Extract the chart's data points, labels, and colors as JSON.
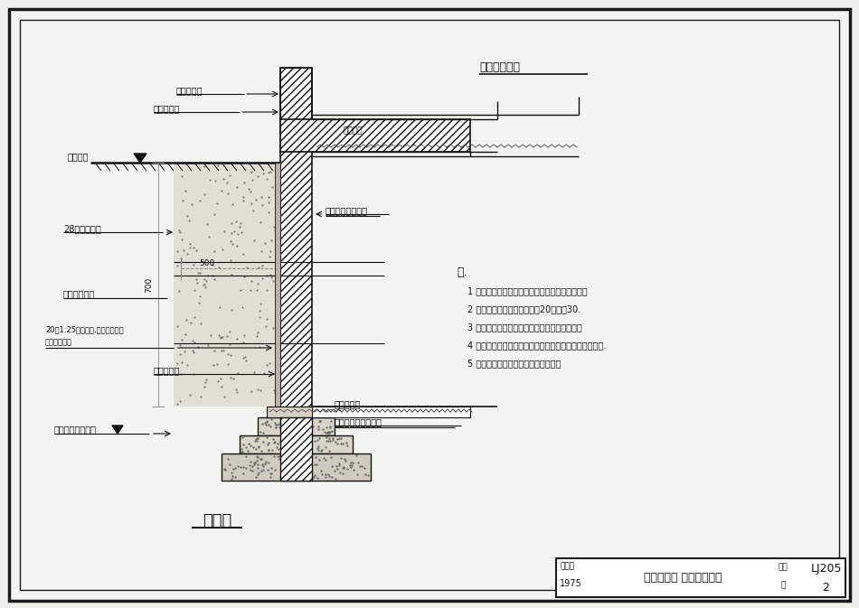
{
  "bg_color": "#f0eeea",
  "paper_color": "#f5f3ef",
  "border_color": "#1a1a1a",
  "title_bottom": "砖墙身",
  "title_top_right": "楼板详结构图",
  "notes_title": "注.",
  "notes": [
    "1 地下室墙身厚度，详具体设计，基础详结构图。",
    "2 外墙为乱石时，水泥砂浆底20厚改对30.",
    "3 地下室外墙脚手架不得身过，灰缝必须填满。",
    "4 管道穿墙时应在墙身预留孔洞，外墙砌筑前将管道安好.",
    "5 基基，刷防潮层，做法详结构图示。"
  ],
  "label_wall_top": "墙身防潮层",
  "label_wall_detail": "详具体设计",
  "label_wall_outside": "墙外地面",
  "label_soil": "28水土配筋带",
  "label_concrete": "混土分层夯筑",
  "label_layer": "20厚1:25水泥砂浆,内放千缝一道",
  "label_layer2": "满缝满刷二道",
  "label_waterproof": "防渗砂浆层",
  "label_basement_wall_face": "围墙面详具体设计",
  "label_basement_floor": "地下室地面",
  "label_floor_detail": "地坪做法详具体设计",
  "label_design_water": "设计最高地下水位",
  "label_waterproof_level": "防水地面",
  "label_dim_500": "500",
  "label_dim_700": "700",
  "footer_left1": "通用图",
  "footer_left2": "1975",
  "footer_center": "塗抹式防潮 墙身及变形缝",
  "footer_right1": "编号",
  "footer_right2": "LJ205",
  "footer_right3": "页",
  "footer_right4": "2"
}
